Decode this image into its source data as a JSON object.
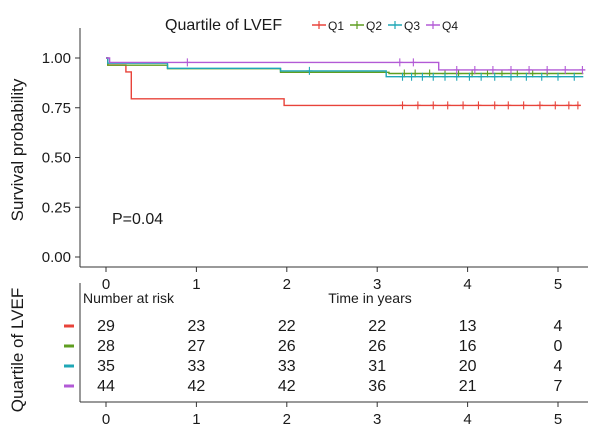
{
  "chart_data": {
    "type": "line",
    "subtype": "kaplan-meier",
    "legend_title": "Quartile of LVEF",
    "legend_position": "top",
    "xlabel": "Time in years",
    "ylabel": "Survival probability",
    "xlim": [
      -0.3,
      5.45
    ],
    "ylim": [
      -0.05,
      1.05
    ],
    "xticks": [
      "0",
      "1",
      "2",
      "3",
      "4",
      "5"
    ],
    "xtick_values": [
      0,
      1,
      2,
      3,
      4,
      5
    ],
    "yticks": [
      "0.00",
      "0.25",
      "0.50",
      "0.75",
      "1.00"
    ],
    "ytick_values": [
      0,
      0.25,
      0.5,
      0.75,
      1.0
    ],
    "annotation": "P=0.04",
    "series": [
      {
        "name": "Q1",
        "color": "#e8433a",
        "steps": [
          [
            0,
            1.0
          ],
          [
            0.02,
            0.965
          ],
          [
            0.22,
            0.93
          ],
          [
            0.28,
            0.795
          ],
          [
            1.93,
            0.795
          ],
          [
            1.97,
            0.762
          ],
          [
            5.25,
            0.762
          ]
        ],
        "censored": [
          [
            3.28,
            0.762
          ],
          [
            3.45,
            0.762
          ],
          [
            3.62,
            0.762
          ],
          [
            3.78,
            0.762
          ],
          [
            3.95,
            0.762
          ],
          [
            4.12,
            0.762
          ],
          [
            4.3,
            0.762
          ],
          [
            4.45,
            0.762
          ],
          [
            4.62,
            0.762
          ],
          [
            4.8,
            0.762
          ],
          [
            4.97,
            0.762
          ],
          [
            5.12,
            0.762
          ],
          [
            5.22,
            0.762
          ]
        ]
      },
      {
        "name": "Q2",
        "color": "#5f9e20",
        "steps": [
          [
            0,
            1.0
          ],
          [
            0.02,
            0.964
          ],
          [
            0.65,
            0.964
          ],
          [
            0.68,
            0.946
          ],
          [
            1.9,
            0.946
          ],
          [
            1.93,
            0.928
          ],
          [
            3.1,
            0.928
          ],
          [
            3.13,
            0.922
          ],
          [
            5.28,
            0.922
          ]
        ],
        "censored": [
          [
            3.3,
            0.922
          ],
          [
            3.42,
            0.922
          ],
          [
            3.58,
            0.922
          ],
          [
            3.75,
            0.922
          ],
          [
            3.9,
            0.922
          ],
          [
            4.05,
            0.922
          ],
          [
            4.22,
            0.922
          ],
          [
            4.38,
            0.922
          ],
          [
            4.55,
            0.922
          ],
          [
            4.72,
            0.922
          ],
          [
            4.88,
            0.922
          ]
        ]
      },
      {
        "name": "Q3",
        "color": "#1fa7b6",
        "steps": [
          [
            0,
            1.0
          ],
          [
            0.02,
            0.974
          ],
          [
            0.65,
            0.974
          ],
          [
            0.68,
            0.948
          ],
          [
            1.9,
            0.948
          ],
          [
            1.93,
            0.935
          ],
          [
            3.08,
            0.935
          ],
          [
            3.1,
            0.906
          ],
          [
            5.28,
            0.906
          ]
        ],
        "censored": [
          [
            2.25,
            0.935
          ],
          [
            3.28,
            0.906
          ],
          [
            3.38,
            0.906
          ],
          [
            3.5,
            0.906
          ],
          [
            3.62,
            0.906
          ],
          [
            3.75,
            0.906
          ],
          [
            3.88,
            0.906
          ],
          [
            4.02,
            0.906
          ],
          [
            4.15,
            0.906
          ],
          [
            4.3,
            0.906
          ],
          [
            4.48,
            0.906
          ],
          [
            4.65,
            0.906
          ],
          [
            4.82,
            0.906
          ],
          [
            5.0,
            0.906
          ],
          [
            5.18,
            0.906
          ]
        ]
      },
      {
        "name": "Q4",
        "color": "#b25ad6",
        "steps": [
          [
            0,
            1.0
          ],
          [
            0.04,
            0.978
          ],
          [
            3.65,
            0.978
          ],
          [
            3.68,
            0.94
          ],
          [
            5.3,
            0.94
          ]
        ],
        "censored": [
          [
            0.9,
            0.978
          ],
          [
            3.25,
            0.978
          ],
          [
            3.4,
            0.978
          ],
          [
            3.88,
            0.94
          ],
          [
            4.08,
            0.94
          ],
          [
            4.28,
            0.94
          ],
          [
            4.48,
            0.94
          ],
          [
            4.68,
            0.94
          ],
          [
            4.88,
            0.94
          ],
          [
            5.08,
            0.94
          ],
          [
            5.27,
            0.94
          ]
        ]
      }
    ],
    "risk_table": {
      "title": "Number at risk",
      "ylabel": "Quartile of LVEF",
      "rows": [
        {
          "name": "Q1",
          "color": "#e8433a",
          "values": [
            "29",
            "23",
            "22",
            "22",
            "13",
            "4"
          ]
        },
        {
          "name": "Q2",
          "color": "#5f9e20",
          "values": [
            "28",
            "27",
            "26",
            "26",
            "16",
            "0"
          ]
        },
        {
          "name": "Q3",
          "color": "#1fa7b6",
          "values": [
            "35",
            "33",
            "33",
            "31",
            "20",
            "4"
          ]
        },
        {
          "name": "Q4",
          "color": "#b25ad6",
          "values": [
            "44",
            "42",
            "42",
            "36",
            "21",
            "7"
          ]
        }
      ]
    }
  }
}
